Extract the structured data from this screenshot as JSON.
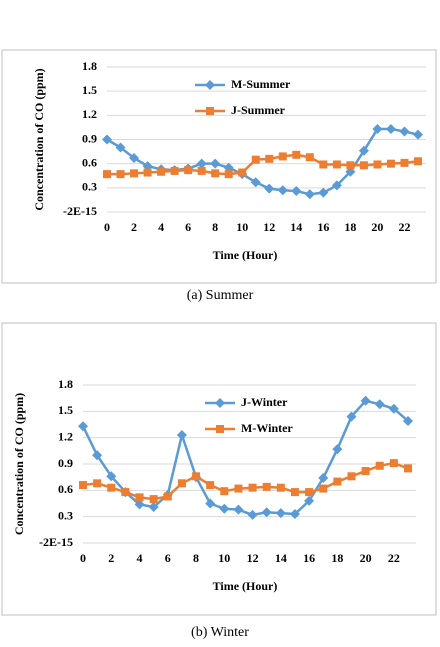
{
  "chart_data": [
    {
      "type": "line",
      "caption": "(a) Summer",
      "y_label": "Concentration of CO (ppm)",
      "x_label": "Time (Hour)",
      "x": [
        0,
        1,
        2,
        3,
        4,
        5,
        6,
        7,
        8,
        9,
        10,
        11,
        12,
        13,
        14,
        15,
        16,
        17,
        18,
        19,
        20,
        21,
        22,
        23
      ],
      "xlim": [
        0,
        23
      ],
      "xticks": [
        0,
        2,
        4,
        6,
        8,
        10,
        12,
        14,
        16,
        18,
        20,
        22
      ],
      "ylim": [
        -2e-15,
        1.8
      ],
      "yticks": [
        {
          "value": -2e-15,
          "label": "-2E-15"
        },
        0.3,
        0.6,
        0.9,
        1.2,
        1.5,
        1.8
      ],
      "grid": true,
      "series": [
        {
          "name": "M-Summer",
          "color": "#5b9bd5",
          "marker": "diamond",
          "values": [
            0.9,
            0.8,
            0.67,
            0.57,
            0.53,
            0.52,
            0.54,
            0.6,
            0.6,
            0.55,
            0.47,
            0.37,
            0.29,
            0.27,
            0.26,
            0.22,
            0.24,
            0.33,
            0.5,
            0.76,
            1.03,
            1.03,
            1.0,
            0.96
          ]
        },
        {
          "name": "J-Summer",
          "color": "#ed7d31",
          "marker": "square",
          "values": [
            0.47,
            0.47,
            0.48,
            0.49,
            0.5,
            0.51,
            0.52,
            0.51,
            0.48,
            0.47,
            0.49,
            0.65,
            0.66,
            0.69,
            0.71,
            0.68,
            0.59,
            0.59,
            0.58,
            0.58,
            0.59,
            0.6,
            0.61,
            0.63
          ]
        }
      ]
    },
    {
      "type": "line",
      "caption": "(b) Winter",
      "y_label": "Concentration of CO (ppm)",
      "x_label": "Time (Hour)",
      "x": [
        0,
        1,
        2,
        3,
        4,
        5,
        6,
        7,
        8,
        9,
        10,
        11,
        12,
        13,
        14,
        15,
        16,
        17,
        18,
        19,
        20,
        21,
        22,
        23
      ],
      "xlim": [
        0,
        23
      ],
      "xticks": [
        0,
        2,
        4,
        6,
        8,
        10,
        12,
        14,
        16,
        18,
        20,
        22
      ],
      "ylim": [
        -2e-15,
        1.8
      ],
      "yticks": [
        {
          "value": -2e-15,
          "label": "-2E-15"
        },
        0.3,
        0.6,
        0.9,
        1.2,
        1.5,
        1.8
      ],
      "grid": true,
      "series": [
        {
          "name": "J-Winter",
          "color": "#5b9bd5",
          "marker": "diamond",
          "values": [
            1.33,
            1.0,
            0.76,
            0.58,
            0.44,
            0.41,
            0.55,
            1.23,
            0.75,
            0.45,
            0.39,
            0.38,
            0.32,
            0.35,
            0.34,
            0.33,
            0.48,
            0.74,
            1.07,
            1.44,
            1.62,
            1.58,
            1.53,
            1.39
          ]
        },
        {
          "name": "M-Winter",
          "color": "#ed7d31",
          "marker": "square",
          "values": [
            0.66,
            0.68,
            0.63,
            0.58,
            0.52,
            0.5,
            0.53,
            0.68,
            0.76,
            0.66,
            0.59,
            0.62,
            0.63,
            0.64,
            0.63,
            0.58,
            0.58,
            0.62,
            0.7,
            0.76,
            0.82,
            0.88,
            0.91,
            0.85
          ]
        }
      ]
    }
  ]
}
